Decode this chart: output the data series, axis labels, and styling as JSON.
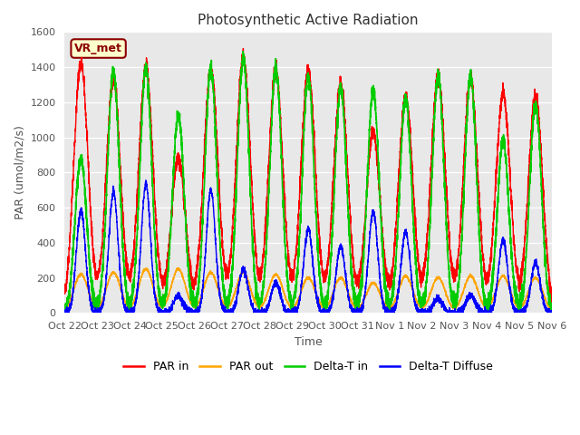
{
  "title": "Photosynthetic Active Radiation",
  "ylabel": "PAR (umol/m2/s)",
  "xlabel": "Time",
  "annotation": "VR_met",
  "ylim": [
    0,
    1600
  ],
  "xtick_labels": [
    "Oct 22",
    "Oct 23",
    "Oct 24",
    "Oct 25",
    "Oct 26",
    "Oct 27",
    "Oct 28",
    "Oct 29",
    "Oct 30",
    "Oct 31",
    "Nov 1",
    "Nov 2",
    "Nov 3",
    "Nov 4",
    "Nov 5",
    "Nov 6"
  ],
  "legend_labels": [
    "PAR in",
    "PAR out",
    "Delta-T in",
    "Delta-T Diffuse"
  ],
  "legend_colors": [
    "#ff0000",
    "#ffa500",
    "#00cc00",
    "#0000ff"
  ],
  "bg_color": "#e8e8e8",
  "days": 15,
  "par_in_peaks": [
    1420,
    1330,
    1400,
    880,
    1390,
    1450,
    1380,
    1380,
    1300,
    1030,
    1240,
    1350,
    1340,
    1250,
    1240
  ],
  "par_out_peaks": [
    220,
    230,
    250,
    250,
    230,
    230,
    220,
    200,
    200,
    170,
    210,
    200,
    210,
    210,
    200
  ],
  "delta_t_in_peaks": [
    880,
    1380,
    1400,
    1130,
    1390,
    1450,
    1400,
    1340,
    1280,
    1270,
    1220,
    1350,
    1340,
    970,
    1190
  ],
  "delta_t_diffuse_peaks": [
    580,
    690,
    730,
    100,
    700,
    250,
    170,
    480,
    380,
    580,
    460,
    80,
    100,
    410,
    290
  ]
}
